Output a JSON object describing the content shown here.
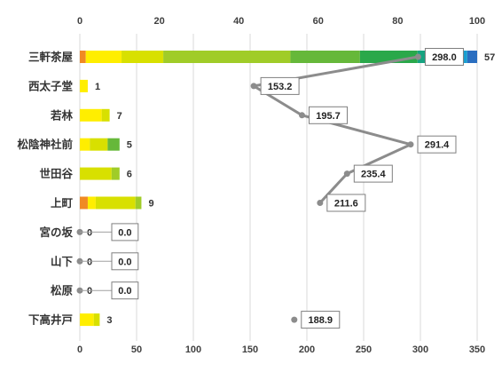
{
  "chart_data": {
    "type": "bar",
    "stacked": true,
    "orientation": "horizontal",
    "grid": true,
    "x_top": {
      "min": 0,
      "max": 100,
      "ticks": [
        "0",
        "20",
        "40",
        "60",
        "80",
        "100"
      ]
    },
    "x_bottom": {
      "min": 0,
      "max": 350,
      "ticks": [
        "0",
        "50",
        "100",
        "150",
        "200",
        "250",
        "300",
        "350"
      ]
    },
    "categories": [
      "三軒茶屋",
      "西太子堂",
      "若林",
      "松陰神社前",
      "世田谷",
      "上町",
      "宮の坂",
      "山下",
      "松原",
      "下高井戸"
    ],
    "segment_colors": [
      "#f08a24",
      "#ffee00",
      "#d8e000",
      "#a0cc28",
      "#66b83a",
      "#2aa84a",
      "#15a380",
      "#1a9fd0",
      "#2a6ec0"
    ],
    "segments": [
      [
        1.5,
        9,
        10.5,
        32,
        17.5,
        14.5,
        8,
        4.5,
        2.5
      ],
      [
        0,
        2,
        0,
        0,
        0,
        0,
        0,
        0,
        0
      ],
      [
        0,
        5.5,
        2,
        0,
        0,
        0,
        0,
        0,
        0
      ],
      [
        0,
        2.5,
        4.5,
        0,
        3,
        0,
        0,
        0,
        0
      ],
      [
        0,
        0,
        8,
        2,
        0,
        0,
        0,
        0,
        0
      ],
      [
        2,
        2,
        10,
        1.5,
        0,
        0,
        0,
        0,
        0
      ],
      [
        0,
        0,
        0,
        0,
        0,
        0,
        0,
        0,
        0
      ],
      [
        0,
        0,
        0,
        0,
        0,
        0,
        0,
        0,
        0
      ],
      [
        0,
        0,
        0,
        0,
        0,
        0,
        0,
        0,
        0
      ],
      [
        0,
        3.5,
        1.5,
        0,
        0,
        0,
        0,
        0,
        0
      ]
    ],
    "bar_totals": [
      "57",
      "1",
      "7",
      "5",
      "6",
      "9",
      "0",
      "0",
      "0",
      "3"
    ],
    "line_values": [
      298.0,
      153.2,
      195.7,
      291.4,
      235.4,
      211.6,
      0.0,
      0.0,
      0.0,
      188.9
    ],
    "line_labels": [
      "298.0",
      "153.2",
      "195.7",
      "291.4",
      "235.4",
      "211.6",
      "0.0",
      "0.0",
      "0.0",
      "188.9"
    ],
    "line_color": "#8c8c8c"
  }
}
